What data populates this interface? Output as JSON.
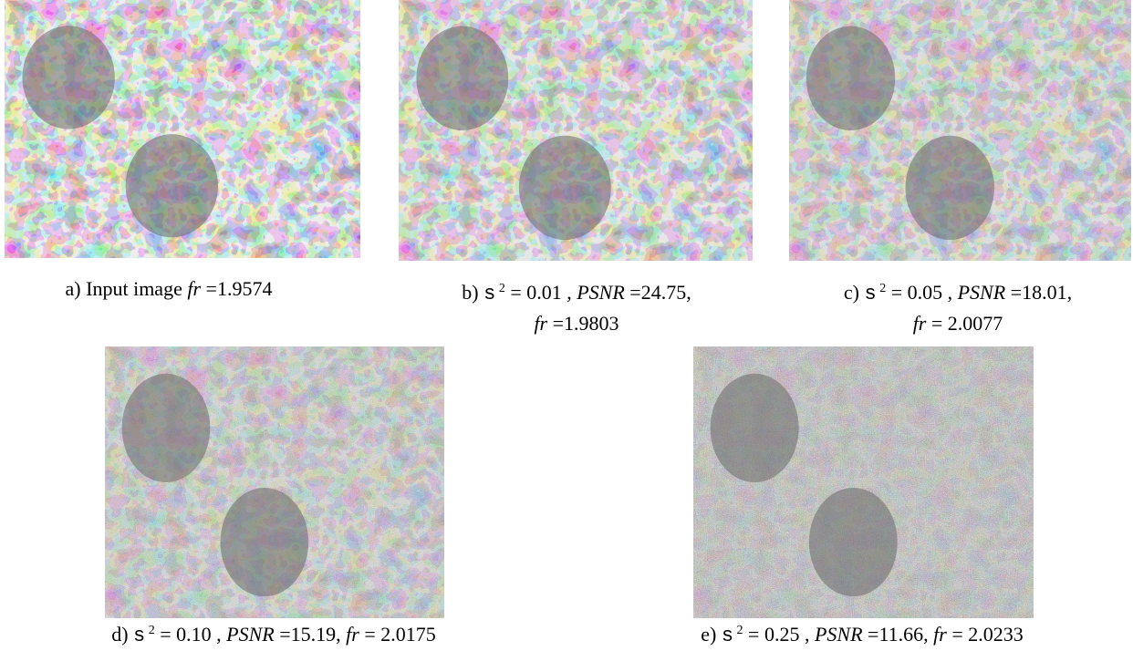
{
  "panels": [
    {
      "caption": [
        [
          {
            "text": "a) Input image "
          },
          {
            "text": "fr",
            "style": "italic"
          },
          {
            "text": " =1.9574"
          }
        ]
      ]
    },
    {
      "caption": [
        [
          {
            "text": "b) "
          },
          {
            "text": "s",
            "style": "mono"
          },
          {
            "text": " 2",
            "style": "sup"
          },
          {
            "text": " = 0.01 , "
          },
          {
            "text": "PSNR",
            "style": "italic"
          },
          {
            "text": " =24.75,"
          }
        ],
        [
          {
            "text": "fr",
            "style": "italic"
          },
          {
            "text": " =1.9803"
          }
        ]
      ]
    },
    {
      "caption": [
        [
          {
            "text": "c) "
          },
          {
            "text": "s",
            "style": "mono"
          },
          {
            "text": " 2",
            "style": "sup"
          },
          {
            "text": " = 0.05 , "
          },
          {
            "text": "PSNR",
            "style": "italic"
          },
          {
            "text": " =18.01,"
          }
        ],
        [
          {
            "text": "fr",
            "style": "italic"
          },
          {
            "text": " = 2.0077"
          }
        ]
      ]
    },
    {
      "caption": [
        [
          {
            "text": "d) "
          },
          {
            "text": "s",
            "style": "mono"
          },
          {
            "text": " 2",
            "style": "sup"
          },
          {
            "text": " = 0.10 , "
          },
          {
            "text": "PSNR",
            "style": "italic"
          },
          {
            "text": " =15.19,  "
          },
          {
            "text": "fr",
            "style": "italic"
          },
          {
            "text": " = 2.0175"
          }
        ]
      ]
    },
    {
      "caption": [
        [
          {
            "text": "e) "
          },
          {
            "text": "s",
            "style": "mono"
          },
          {
            "text": " 2",
            "style": "sup"
          },
          {
            "text": " = 0.25 , "
          },
          {
            "text": "PSNR",
            "style": "italic"
          },
          {
            "text": " =11.66,  "
          },
          {
            "text": "fr",
            "style": "italic"
          },
          {
            "text": " = 2.0233"
          }
        ]
      ]
    }
  ]
}
